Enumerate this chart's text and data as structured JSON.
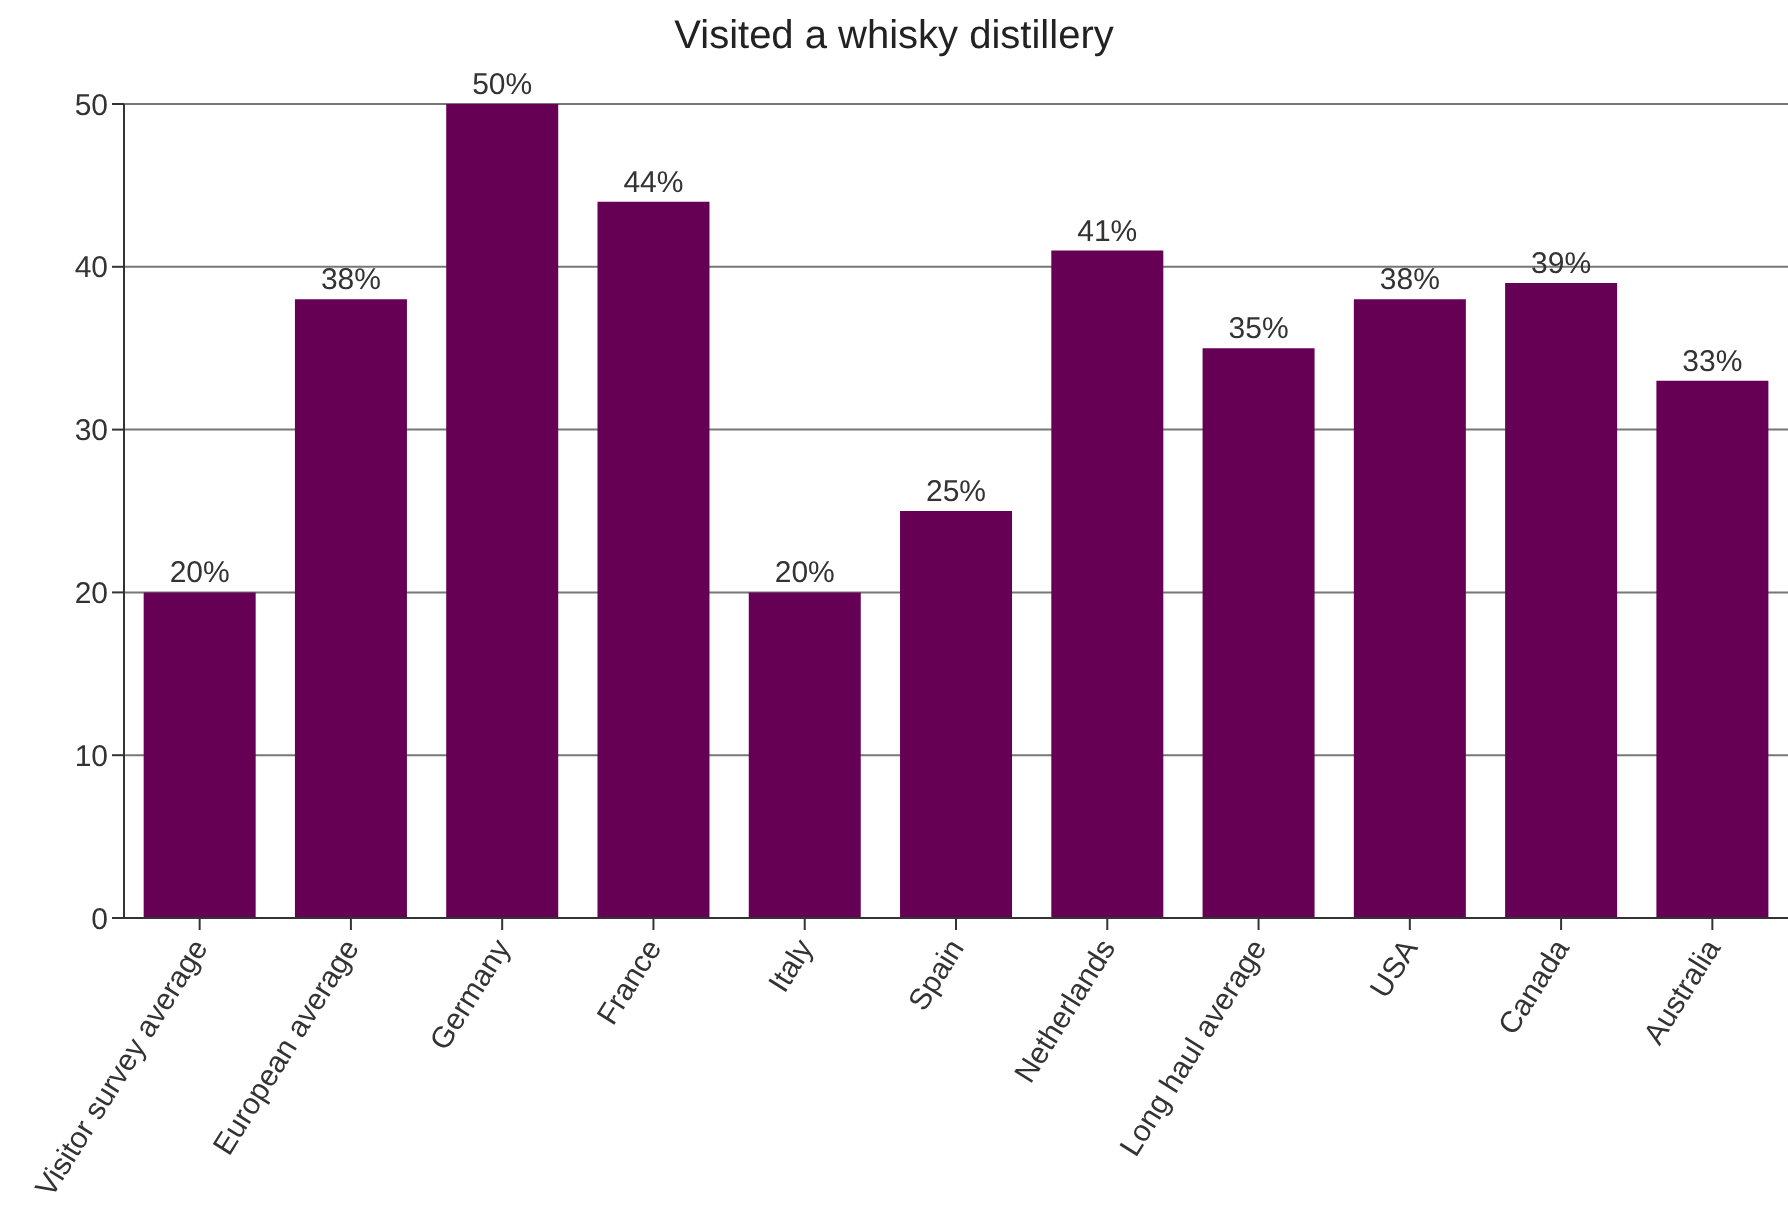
{
  "chart_data": {
    "type": "bar",
    "title": "Visited a whisky distillery",
    "categories": [
      "Visitor survey average",
      "European average",
      "Germany",
      "France",
      "Italy",
      "Spain",
      "Netherlands",
      "Long haul average",
      "USA",
      "Canada",
      "Australia"
    ],
    "values": [
      20,
      38,
      50,
      44,
      20,
      25,
      41,
      35,
      38,
      39,
      33
    ],
    "value_labels": [
      "20%",
      "38%",
      "50%",
      "44%",
      "20%",
      "25%",
      "41%",
      "35%",
      "38%",
      "39%",
      "33%"
    ],
    "color": "#660055",
    "ylim": [
      0,
      50
    ],
    "yticks": [
      0,
      10,
      20,
      30,
      40,
      50
    ],
    "grid": "y",
    "legend": false
  }
}
